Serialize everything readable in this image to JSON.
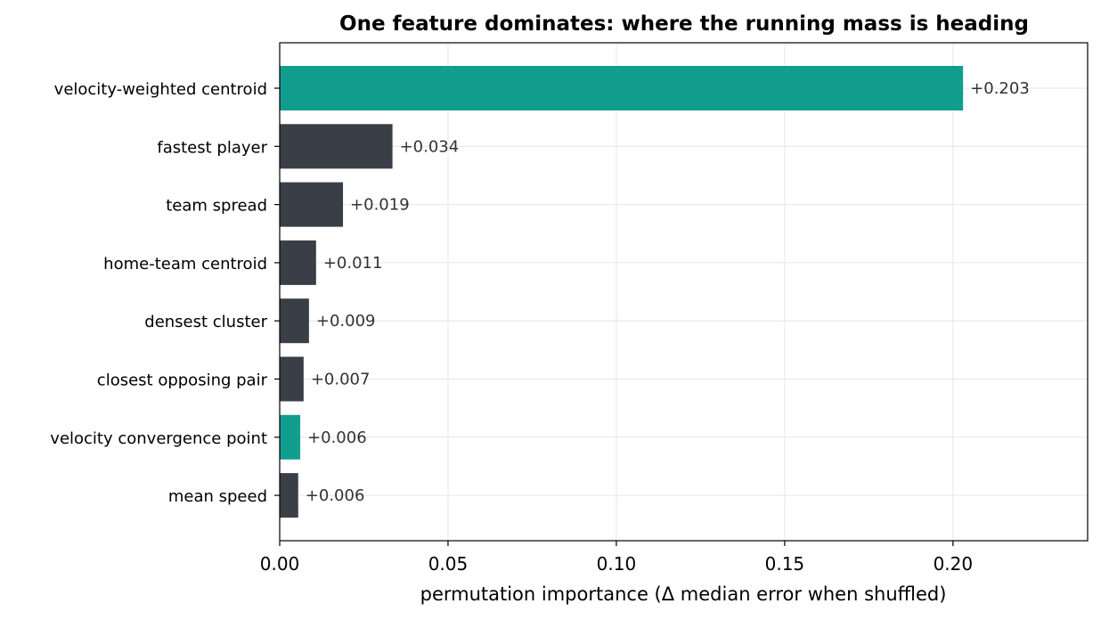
{
  "chart_data": {
    "type": "bar",
    "orientation": "horizontal",
    "title": "One feature dominates: where the running mass is heading",
    "xlabel": "permutation importance (Δ median error when shuffled)",
    "ylabel": "",
    "xlim": [
      0,
      0.24
    ],
    "xticks": [
      "0.00",
      "0.05",
      "0.10",
      "0.15",
      "0.20"
    ],
    "xtick_values": [
      0,
      0.05,
      0.1,
      0.15,
      0.2
    ],
    "grid": true,
    "categories": [
      "velocity-weighted centroid",
      "fastest player",
      "team spread",
      "home-team centroid",
      "densest cluster",
      "closest opposing pair",
      "velocity convergence point",
      "mean speed"
    ],
    "values": [
      0.203,
      0.0335,
      0.0188,
      0.0108,
      0.0087,
      0.0071,
      0.0061,
      0.0055
    ],
    "labels": [
      "+0.203",
      "+0.034",
      "+0.019",
      "+0.011",
      "+0.009",
      "+0.007",
      "+0.006",
      "+0.006"
    ],
    "highlight": [
      true,
      false,
      false,
      false,
      false,
      false,
      true,
      false
    ],
    "colors": {
      "highlight": "#119e8f",
      "default": "#3a3f47"
    }
  }
}
